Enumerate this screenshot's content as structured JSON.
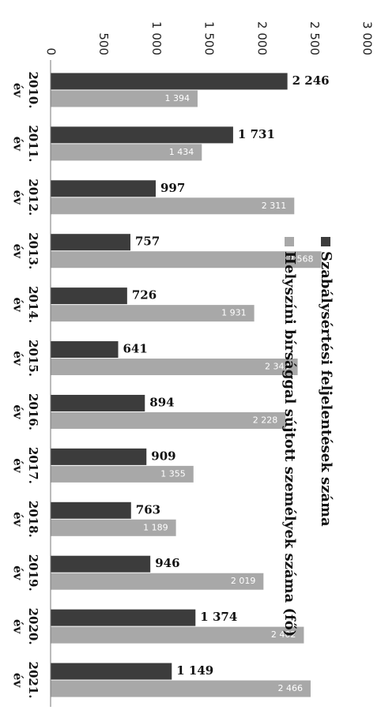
{
  "chart_data": {
    "type": "bar",
    "orientation": "horizontal",
    "categories": [
      "2010. év",
      "2011. év",
      "2012. év",
      "2013. év",
      "2014. év",
      "2015. év",
      "2016. év",
      "2017. év",
      "2018. év",
      "2019. év",
      "2020. év",
      "2021. év"
    ],
    "series": [
      {
        "name": "Szabálysértési feljelentések száma",
        "color": "#3c3c3c",
        "values": [
          2246,
          1731,
          997,
          757,
          726,
          641,
          894,
          909,
          763,
          946,
          1374,
          1149
        ],
        "labels": [
          "2 246",
          "1 731",
          "997",
          "757",
          "726",
          "641",
          "894",
          "909",
          "763",
          "946",
          "1 374",
          "1 149"
        ]
      },
      {
        "name": "Helyszíni bírsággal sújtott személyek száma (fő)",
        "color": "#a8a8a8",
        "values": [
          1394,
          1434,
          2311,
          2568,
          1931,
          2343,
          2228,
          1355,
          1189,
          2019,
          2402,
          2466
        ],
        "labels": [
          "1 394",
          "1 434",
          "2 311",
          "2 568",
          "1 931",
          "2 343",
          "2 228",
          "1 355",
          "1 189",
          "2 019",
          "2 402",
          "2 466"
        ]
      }
    ],
    "axis": {
      "min": 0,
      "max": 3000,
      "ticks": [
        0,
        500,
        1000,
        1500,
        2000,
        2500,
        3000
      ],
      "tick_labels": [
        "0",
        "500",
        "1 000",
        "1 500",
        "2 000",
        "2 500",
        "3 000"
      ]
    },
    "legend_position": "top",
    "grid": false
  }
}
